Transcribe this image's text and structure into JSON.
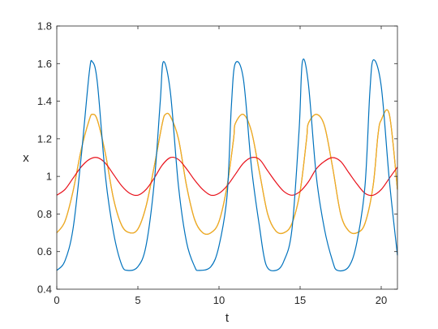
{
  "chart_data": {
    "type": "line",
    "title": "",
    "xlabel": "t",
    "ylabel": "x",
    "xlim": [
      0,
      21
    ],
    "ylim": [
      0.4,
      1.8
    ],
    "x_ticks": [
      0,
      5,
      10,
      15,
      20
    ],
    "x_tick_labels": [
      "0",
      "5",
      "10",
      "15",
      "20"
    ],
    "y_ticks": [
      0.4,
      0.6,
      0.8,
      1.0,
      1.2,
      1.4,
      1.6,
      1.8
    ],
    "y_tick_labels": [
      "0.4",
      "0.6",
      "0.8",
      "1",
      "1.2",
      "1.4",
      "1.6",
      "1.8"
    ],
    "grid": false,
    "legend": "none",
    "series": [
      {
        "color": "#0072bd",
        "x": [
          0,
          0.5,
          1.0,
          1.5,
          2.0,
          2.19,
          2.5,
          3.0,
          3.5,
          4.0,
          4.38,
          5.0,
          5.5,
          6.0,
          6.38,
          6.57,
          7.0,
          7.5,
          8.0,
          8.5,
          8.76,
          9.5,
          10.0,
          10.5,
          10.76,
          11.0,
          11.5,
          12.0,
          12.5,
          12.9,
          13.5,
          14.0,
          14.5,
          14.94,
          15.14,
          15.5,
          16.0,
          16.5,
          17.0,
          17.3,
          18.0,
          18.5,
          19.0,
          19.3,
          19.52,
          20.0,
          20.5,
          21.0
        ],
        "y": [
          0.5,
          0.55,
          0.72,
          1.1,
          1.55,
          1.61,
          1.5,
          1.0,
          0.7,
          0.53,
          0.5,
          0.52,
          0.63,
          0.96,
          1.4,
          1.61,
          1.45,
          0.95,
          0.65,
          0.52,
          0.5,
          0.52,
          0.63,
          0.9,
          1.37,
          1.6,
          1.52,
          1.05,
          0.73,
          0.53,
          0.5,
          0.55,
          0.72,
          1.25,
          1.61,
          1.5,
          1.0,
          0.72,
          0.55,
          0.5,
          0.52,
          0.65,
          0.95,
          1.45,
          1.62,
          1.48,
          0.98,
          0.58
        ]
      },
      {
        "color": "#d95319",
        "x": [
          0,
          0.5,
          1.0,
          1.5,
          2.0,
          2.2,
          2.5,
          3.0,
          3.5,
          4.0,
          4.5,
          5.0,
          5.5,
          6.0,
          6.5,
          6.7,
          7.0,
          7.5,
          8.0,
          8.5,
          9.0,
          9.5,
          10.0,
          10.5,
          10.9,
          11.0,
          11.5,
          12.0,
          12.5,
          13.0,
          13.5,
          14.0,
          14.5,
          15.0,
          15.4,
          15.5,
          16.0,
          16.5,
          17.0,
          17.5,
          18.0,
          18.5,
          19.0,
          19.5,
          19.8,
          20.0,
          20.5,
          21.0
        ],
        "y": [
          0.7,
          0.76,
          0.92,
          1.14,
          1.3,
          1.33,
          1.3,
          1.12,
          0.88,
          0.74,
          0.7,
          0.72,
          0.84,
          1.05,
          1.28,
          1.33,
          1.32,
          1.2,
          0.95,
          0.77,
          0.7,
          0.7,
          0.76,
          0.95,
          1.2,
          1.28,
          1.33,
          1.24,
          1.02,
          0.8,
          0.71,
          0.7,
          0.75,
          0.92,
          1.2,
          1.28,
          1.33,
          1.27,
          1.05,
          0.8,
          0.71,
          0.7,
          0.75,
          0.95,
          1.22,
          1.3,
          1.33,
          0.93
        ]
      },
      {
        "color": "#edb120",
        "x": [
          0,
          0.5,
          1.0,
          1.5,
          2.0,
          2.2,
          2.5,
          3.0,
          3.5,
          4.0,
          4.5,
          5.0,
          5.5,
          6.0,
          6.5,
          6.7,
          7.0,
          7.5,
          8.0,
          8.5,
          9.0,
          9.5,
          10.0,
          10.5,
          10.9,
          11.0,
          11.5,
          12.0,
          12.5,
          13.0,
          13.5,
          14.0,
          14.5,
          15.0,
          15.4,
          15.5,
          16.0,
          16.5,
          17.0,
          17.5,
          18.0,
          18.5,
          19.0,
          19.5,
          19.8,
          20.0,
          20.5,
          21.0
        ],
        "y": [
          0.7,
          0.76,
          0.92,
          1.14,
          1.3,
          1.33,
          1.3,
          1.12,
          0.88,
          0.74,
          0.7,
          0.72,
          0.84,
          1.05,
          1.28,
          1.33,
          1.32,
          1.2,
          0.95,
          0.77,
          0.7,
          0.7,
          0.76,
          0.95,
          1.2,
          1.28,
          1.33,
          1.24,
          1.02,
          0.8,
          0.71,
          0.7,
          0.75,
          0.92,
          1.2,
          1.28,
          1.33,
          1.27,
          1.05,
          0.8,
          0.71,
          0.7,
          0.75,
          0.95,
          1.22,
          1.3,
          1.33,
          0.93
        ]
      },
      {
        "color": "#e8101a",
        "x": [
          0,
          0.5,
          1.0,
          1.5,
          2.0,
          2.5,
          3.0,
          3.5,
          4.0,
          4.5,
          5.0,
          5.5,
          6.0,
          6.5,
          7.0,
          7.5,
          8.0,
          8.5,
          9.0,
          9.5,
          10.0,
          10.5,
          11.0,
          11.5,
          12.0,
          12.5,
          13.0,
          13.5,
          14.0,
          14.5,
          15.0,
          15.5,
          16.0,
          16.5,
          17.0,
          17.5,
          18.0,
          18.5,
          19.0,
          19.5,
          20.0,
          20.5,
          21.0
        ],
        "y": [
          0.9,
          0.93,
          0.99,
          1.05,
          1.09,
          1.1,
          1.07,
          1.01,
          0.95,
          0.91,
          0.9,
          0.93,
          0.99,
          1.06,
          1.1,
          1.09,
          1.04,
          0.98,
          0.93,
          0.9,
          0.91,
          0.95,
          1.01,
          1.07,
          1.1,
          1.09,
          1.03,
          0.97,
          0.92,
          0.9,
          0.92,
          0.97,
          1.04,
          1.08,
          1.1,
          1.08,
          1.02,
          0.96,
          0.91,
          0.9,
          0.93,
          0.99,
          1.05
        ]
      }
    ]
  }
}
